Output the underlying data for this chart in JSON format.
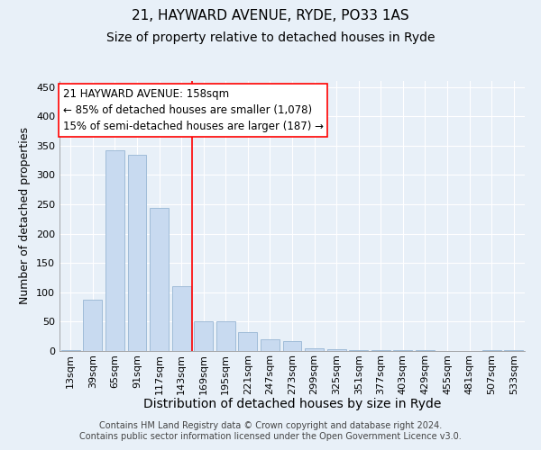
{
  "title": "21, HAYWARD AVENUE, RYDE, PO33 1AS",
  "subtitle": "Size of property relative to detached houses in Ryde",
  "xlabel": "Distribution of detached houses by size in Ryde",
  "ylabel": "Number of detached properties",
  "bar_color": "#c8daf0",
  "bar_edge_color": "#a0bcd8",
  "background_color": "#e8f0f8",
  "grid_color": "#ffffff",
  "categories": [
    "13sqm",
    "39sqm",
    "65sqm",
    "91sqm",
    "117sqm",
    "143sqm",
    "169sqm",
    "195sqm",
    "221sqm",
    "247sqm",
    "273sqm",
    "299sqm",
    "325sqm",
    "351sqm",
    "377sqm",
    "403sqm",
    "429sqm",
    "455sqm",
    "481sqm",
    "507sqm",
    "533sqm"
  ],
  "values": [
    2,
    88,
    342,
    335,
    244,
    110,
    50,
    50,
    32,
    20,
    17,
    5,
    3,
    2,
    1,
    1,
    1,
    0,
    0,
    1,
    1
  ],
  "ylim": [
    0,
    460
  ],
  "yticks": [
    0,
    50,
    100,
    150,
    200,
    250,
    300,
    350,
    400,
    450
  ],
  "property_line_x": 5.5,
  "annotation_text_line1": "21 HAYWARD AVENUE: 158sqm",
  "annotation_text_line2": "← 85% of detached houses are smaller (1,078)",
  "annotation_text_line3": "15% of semi-detached houses are larger (187) →",
  "footer": "Contains HM Land Registry data © Crown copyright and database right 2024.\nContains public sector information licensed under the Open Government Licence v3.0.",
  "title_fontsize": 11,
  "subtitle_fontsize": 10,
  "xlabel_fontsize": 10,
  "ylabel_fontsize": 9,
  "tick_fontsize": 8,
  "annotation_fontsize": 8.5,
  "footer_fontsize": 7
}
